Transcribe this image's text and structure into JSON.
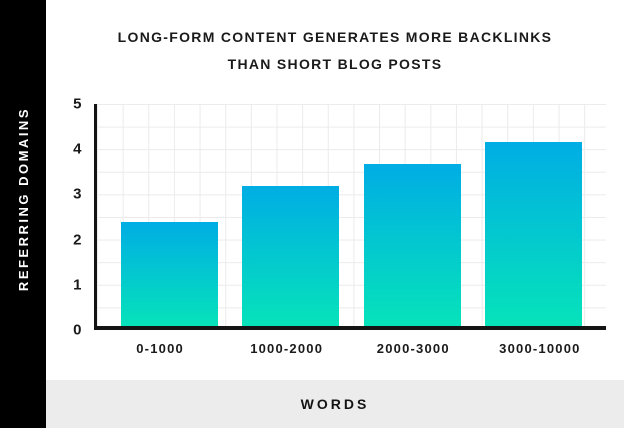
{
  "chart_data": {
    "type": "bar",
    "title": "LONG-FORM CONTENT GENERATES MORE BACKLINKS THAN SHORT BLOG POSTS",
    "title_lines": [
      "LONG-FORM CONTENT GENERATES MORE BACKLINKS",
      "THAN SHORT BLOG POSTS"
    ],
    "categories": [
      "0-1000",
      "1000-2000",
      "2000-3000",
      "3000-10000"
    ],
    "values": [
      2.35,
      3.15,
      3.65,
      4.15
    ],
    "xlabel": "WORDS",
    "ylabel": "REFERRING DOMAINS",
    "ylim": [
      0,
      5
    ],
    "yticks": [
      5,
      4,
      3,
      2,
      1,
      0
    ],
    "grid": true,
    "legend": "none",
    "colors": {
      "bar_gradient_top": "#00ADE4",
      "bar_gradient_bottom": "#06E3BA",
      "sidebar_bg": "#000000",
      "sidebar_text": "#FFFFFF",
      "footer_bg": "#ECECEC",
      "axis": "#141414",
      "gridline": "#EBEBEB",
      "text": "#1A1A1A"
    }
  }
}
